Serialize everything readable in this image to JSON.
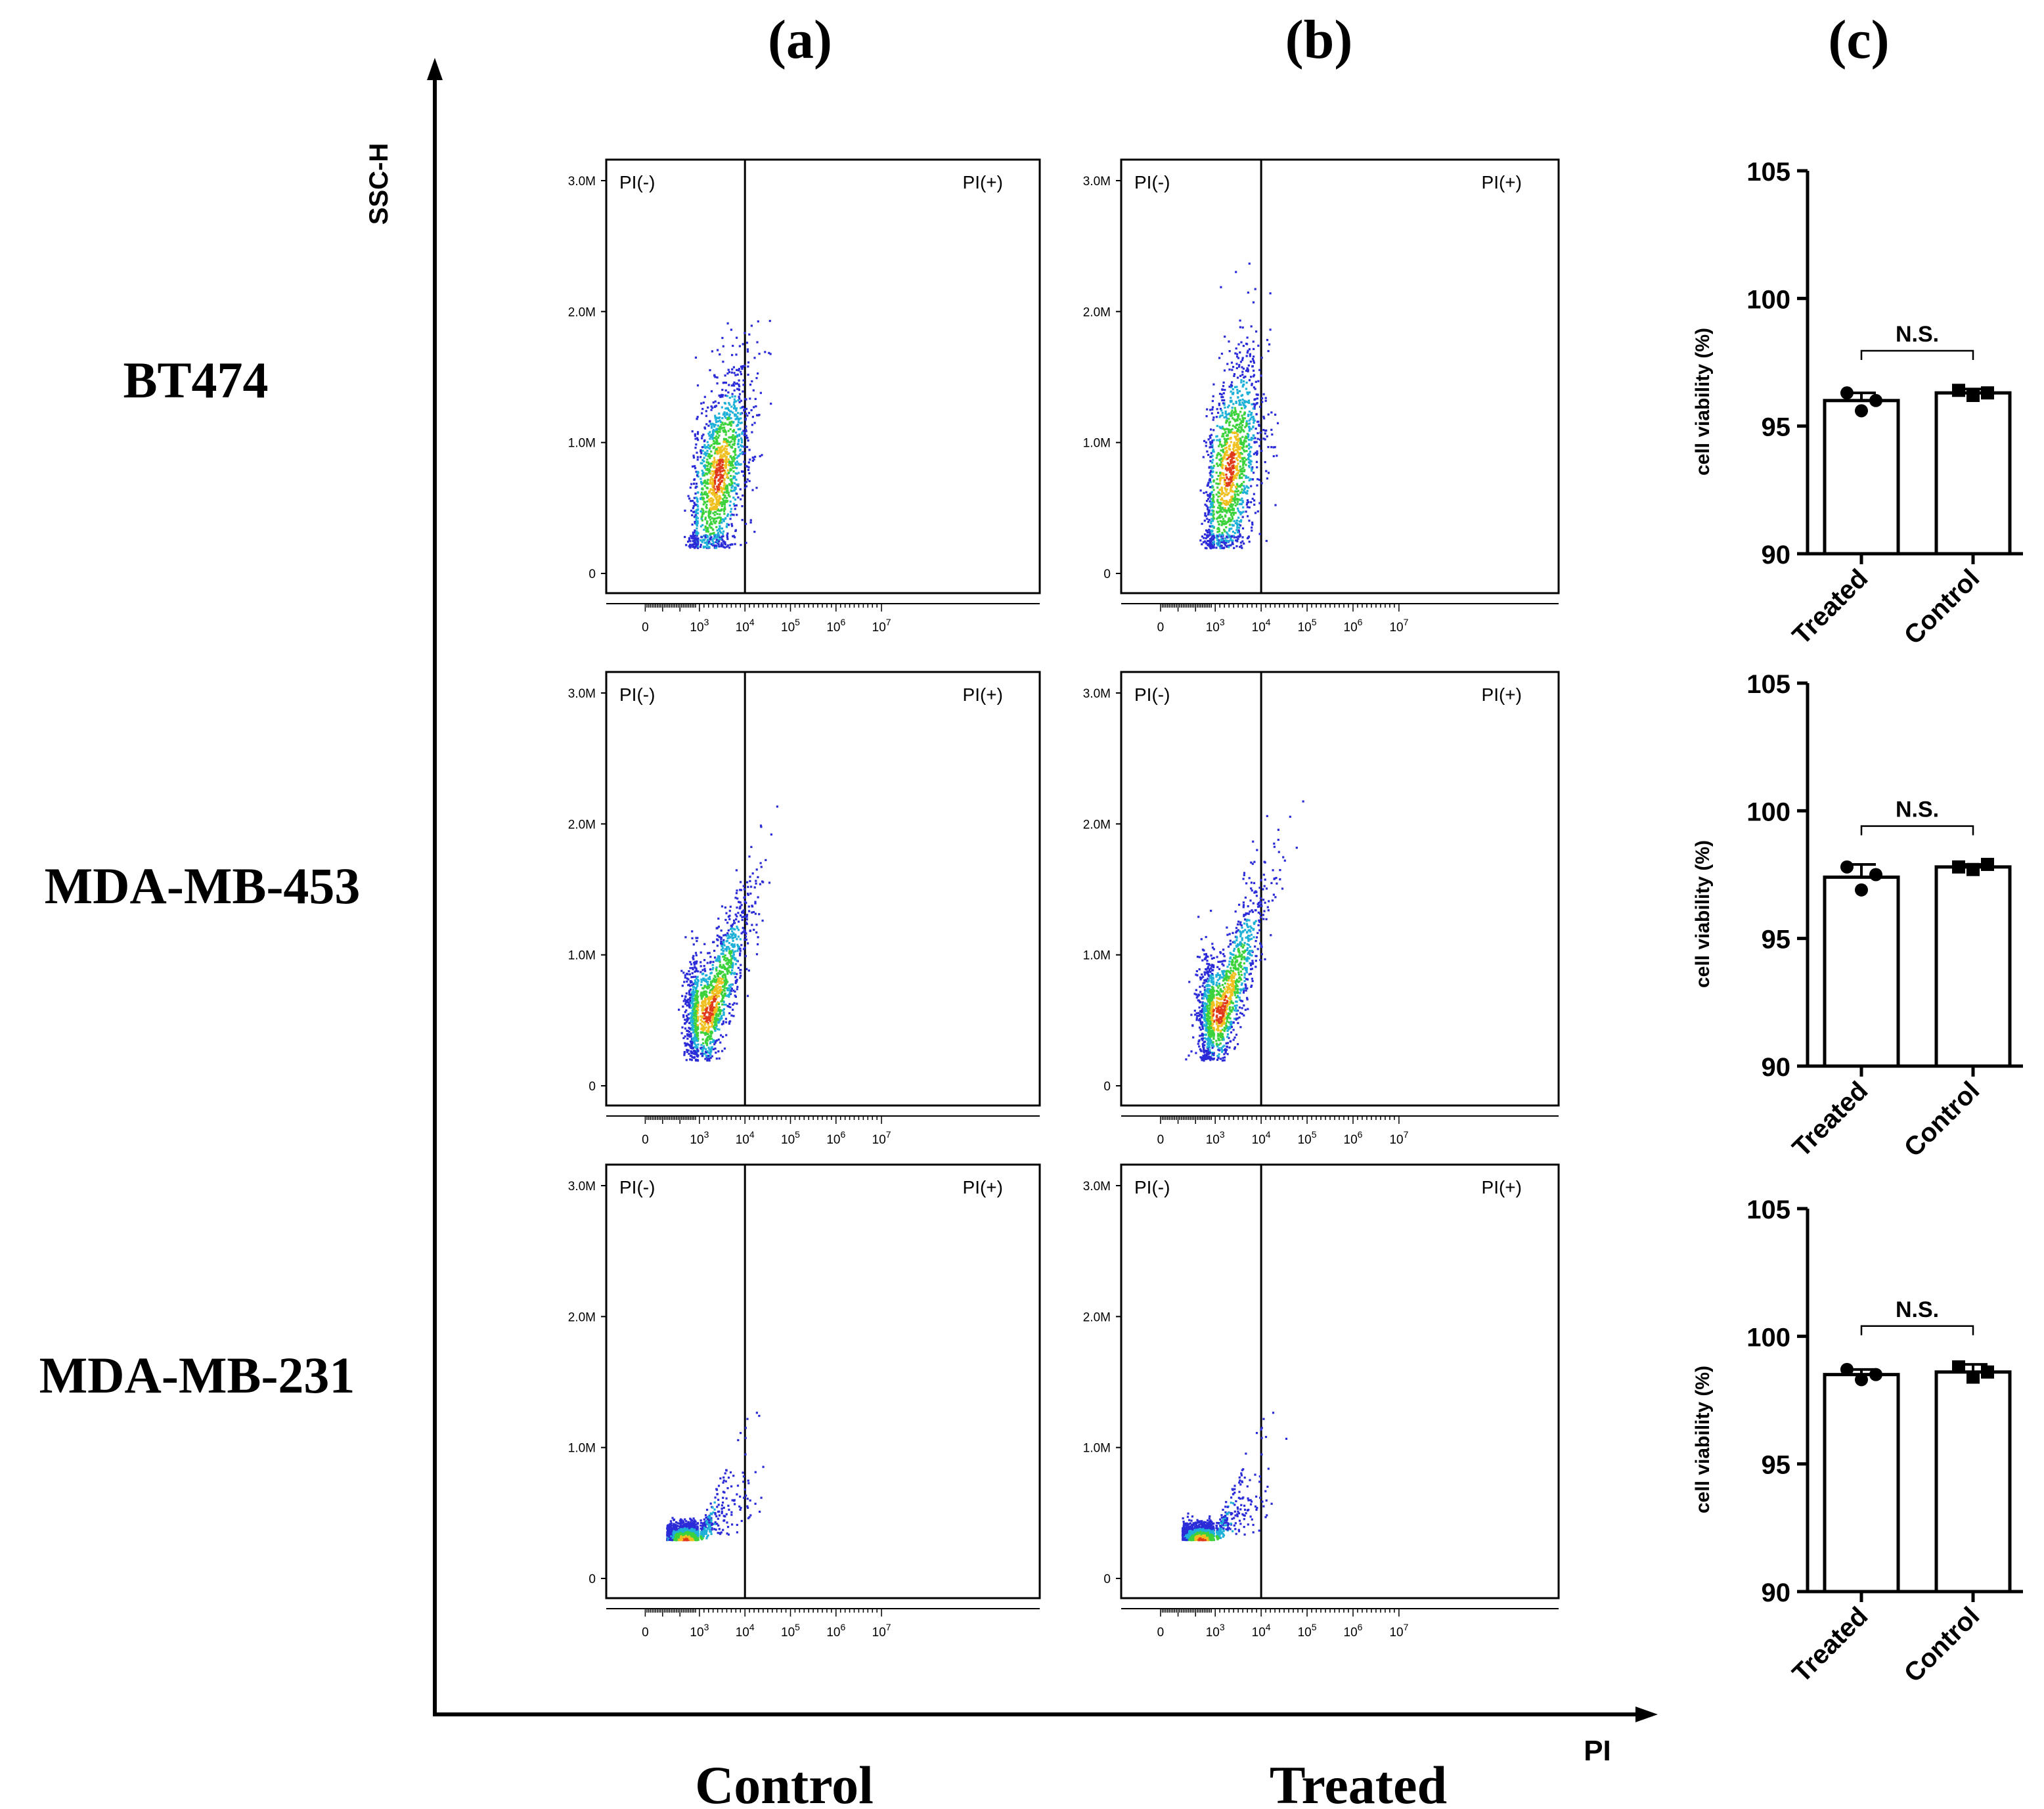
{
  "figure": {
    "panel_labels": [
      "(a)",
      "(b)",
      "(c)"
    ],
    "row_labels": [
      "BT474",
      "MDA-MB-453",
      "MDA-MB-231"
    ],
    "column_labels": [
      "Control",
      "Treated"
    ],
    "y_axis_label": "SSC-H",
    "x_axis_label": "PI"
  },
  "colors": {
    "axis": "#000000",
    "density_low": "#2b2bd8",
    "density_mid": "#1fb0d8",
    "density_high": "#3cd23c",
    "density_peak": "#f0c020",
    "density_core": "#e03a1a",
    "bar_fill": "#ffffff"
  },
  "chart_data": [
    {
      "type": "scatter",
      "title": "BT474 Control",
      "gate_labels": [
        "PI(-)",
        "PI(+)"
      ],
      "yticks": [
        "0",
        "1.0M",
        "2.0M",
        "3.0M"
      ],
      "xticks": [
        {
          "base": "0",
          "exp": ""
        },
        {
          "base": "10",
          "exp": "3"
        },
        {
          "base": "10",
          "exp": "4"
        },
        {
          "base": "10",
          "exp": "5"
        },
        {
          "base": "10",
          "exp": "6"
        },
        {
          "base": "10",
          "exp": "7"
        }
      ],
      "gate_x_log": 4.0,
      "ylim": [
        0,
        3.0
      ],
      "cluster": {
        "center_log": 3.4,
        "center_m": 0.75,
        "spread_log": 0.35,
        "spread_m": 0.35,
        "shape": "upright"
      }
    },
    {
      "type": "scatter",
      "title": "BT474 Treated",
      "gate_labels": [
        "PI(-)",
        "PI(+)"
      ],
      "yticks": [
        "0",
        "1.0M",
        "2.0M",
        "3.0M"
      ],
      "xticks": [
        {
          "base": "0",
          "exp": ""
        },
        {
          "base": "10",
          "exp": "3"
        },
        {
          "base": "10",
          "exp": "4"
        },
        {
          "base": "10",
          "exp": "5"
        },
        {
          "base": "10",
          "exp": "6"
        },
        {
          "base": "10",
          "exp": "7"
        }
      ],
      "gate_x_log": 4.0,
      "ylim": [
        0,
        3.0
      ],
      "cluster": {
        "center_log": 3.3,
        "center_m": 0.8,
        "spread_log": 0.35,
        "spread_m": 0.4,
        "shape": "upright"
      }
    },
    {
      "type": "scatter",
      "title": "MDA-MB-453 Control",
      "gate_labels": [
        "PI(-)",
        "PI(+)"
      ],
      "yticks": [
        "0",
        "1.0M",
        "2.0M",
        "3.0M"
      ],
      "xticks": [
        {
          "base": "0",
          "exp": ""
        },
        {
          "base": "10",
          "exp": "3"
        },
        {
          "base": "10",
          "exp": "4"
        },
        {
          "base": "10",
          "exp": "5"
        },
        {
          "base": "10",
          "exp": "6"
        },
        {
          "base": "10",
          "exp": "7"
        }
      ],
      "gate_x_log": 4.0,
      "ylim": [
        0,
        3.0
      ],
      "cluster": {
        "center_log": 3.2,
        "center_m": 0.55,
        "spread_log": 0.45,
        "spread_m": 0.35,
        "shape": "diagonal"
      }
    },
    {
      "type": "scatter",
      "title": "MDA-MB-453 Treated",
      "gate_labels": [
        "PI(-)",
        "PI(+)"
      ],
      "yticks": [
        "0",
        "1.0M",
        "2.0M",
        "3.0M"
      ],
      "xticks": [
        {
          "base": "0",
          "exp": ""
        },
        {
          "base": "10",
          "exp": "3"
        },
        {
          "base": "10",
          "exp": "4"
        },
        {
          "base": "10",
          "exp": "5"
        },
        {
          "base": "10",
          "exp": "6"
        },
        {
          "base": "10",
          "exp": "7"
        }
      ],
      "gate_x_log": 4.0,
      "ylim": [
        0,
        3.0
      ],
      "cluster": {
        "center_log": 3.1,
        "center_m": 0.55,
        "spread_log": 0.5,
        "spread_m": 0.35,
        "shape": "diagonal"
      }
    },
    {
      "type": "scatter",
      "title": "MDA-MB-231 Control",
      "gate_labels": [
        "PI(-)",
        "PI(+)"
      ],
      "yticks": [
        "0",
        "1.0M",
        "2.0M",
        "3.0M"
      ],
      "xticks": [
        {
          "base": "0",
          "exp": ""
        },
        {
          "base": "10",
          "exp": "3"
        },
        {
          "base": "10",
          "exp": "4"
        },
        {
          "base": "10",
          "exp": "5"
        },
        {
          "base": "10",
          "exp": "6"
        },
        {
          "base": "10",
          "exp": "7"
        }
      ],
      "gate_x_log": 4.0,
      "ylim": [
        0,
        3.0
      ],
      "cluster": {
        "center_log": 2.3,
        "center_m": 0.3,
        "spread_log": 0.7,
        "spread_m": 0.1,
        "shape": "flat"
      }
    },
    {
      "type": "scatter",
      "title": "MDA-MB-231 Treated",
      "gate_labels": [
        "PI(-)",
        "PI(+)"
      ],
      "yticks": [
        "0",
        "1.0M",
        "2.0M",
        "3.0M"
      ],
      "xticks": [
        {
          "base": "0",
          "exp": ""
        },
        {
          "base": "10",
          "exp": "3"
        },
        {
          "base": "10",
          "exp": "4"
        },
        {
          "base": "10",
          "exp": "5"
        },
        {
          "base": "10",
          "exp": "6"
        },
        {
          "base": "10",
          "exp": "7"
        }
      ],
      "gate_x_log": 4.0,
      "ylim": [
        0,
        3.0
      ],
      "cluster": {
        "center_log": 2.3,
        "center_m": 0.3,
        "spread_log": 0.7,
        "spread_m": 0.1,
        "shape": "flat"
      }
    },
    {
      "type": "bar",
      "title": "BT474 cell viability",
      "categories": [
        "Treated",
        "Control"
      ],
      "values": [
        96.0,
        96.3
      ],
      "errors": [
        0.3,
        0.15
      ],
      "points": [
        [
          96.3,
          95.6,
          96.0
        ],
        [
          96.4,
          96.2,
          96.3
        ]
      ],
      "ylabel": "cell viability  (%)",
      "ylim": [
        90,
        105
      ],
      "yticks": [
        "90",
        "95",
        "100",
        "105"
      ],
      "annotation": "N.S."
    },
    {
      "type": "bar",
      "title": "MDA-MB-453 cell viability",
      "categories": [
        "Treated",
        "Control"
      ],
      "values": [
        97.4,
        97.8
      ],
      "errors": [
        0.5,
        0.1
      ],
      "points": [
        [
          97.8,
          96.9,
          97.5
        ],
        [
          97.8,
          97.7,
          97.9
        ]
      ],
      "ylabel": "cell viability  (%)",
      "ylim": [
        90,
        105
      ],
      "yticks": [
        "90",
        "95",
        "100",
        "105"
      ],
      "annotation": "N.S."
    },
    {
      "type": "bar",
      "title": "MDA-MB-231 cell viability",
      "categories": [
        "Treated",
        "Control"
      ],
      "values": [
        98.5,
        98.6
      ],
      "errors": [
        0.2,
        0.3
      ],
      "points": [
        [
          98.7,
          98.3,
          98.5
        ],
        [
          98.8,
          98.4,
          98.6
        ]
      ],
      "ylabel": "cell viability  (%)",
      "ylim": [
        90,
        105
      ],
      "yticks": [
        "90",
        "95",
        "100",
        "105"
      ],
      "annotation": "N.S."
    }
  ]
}
